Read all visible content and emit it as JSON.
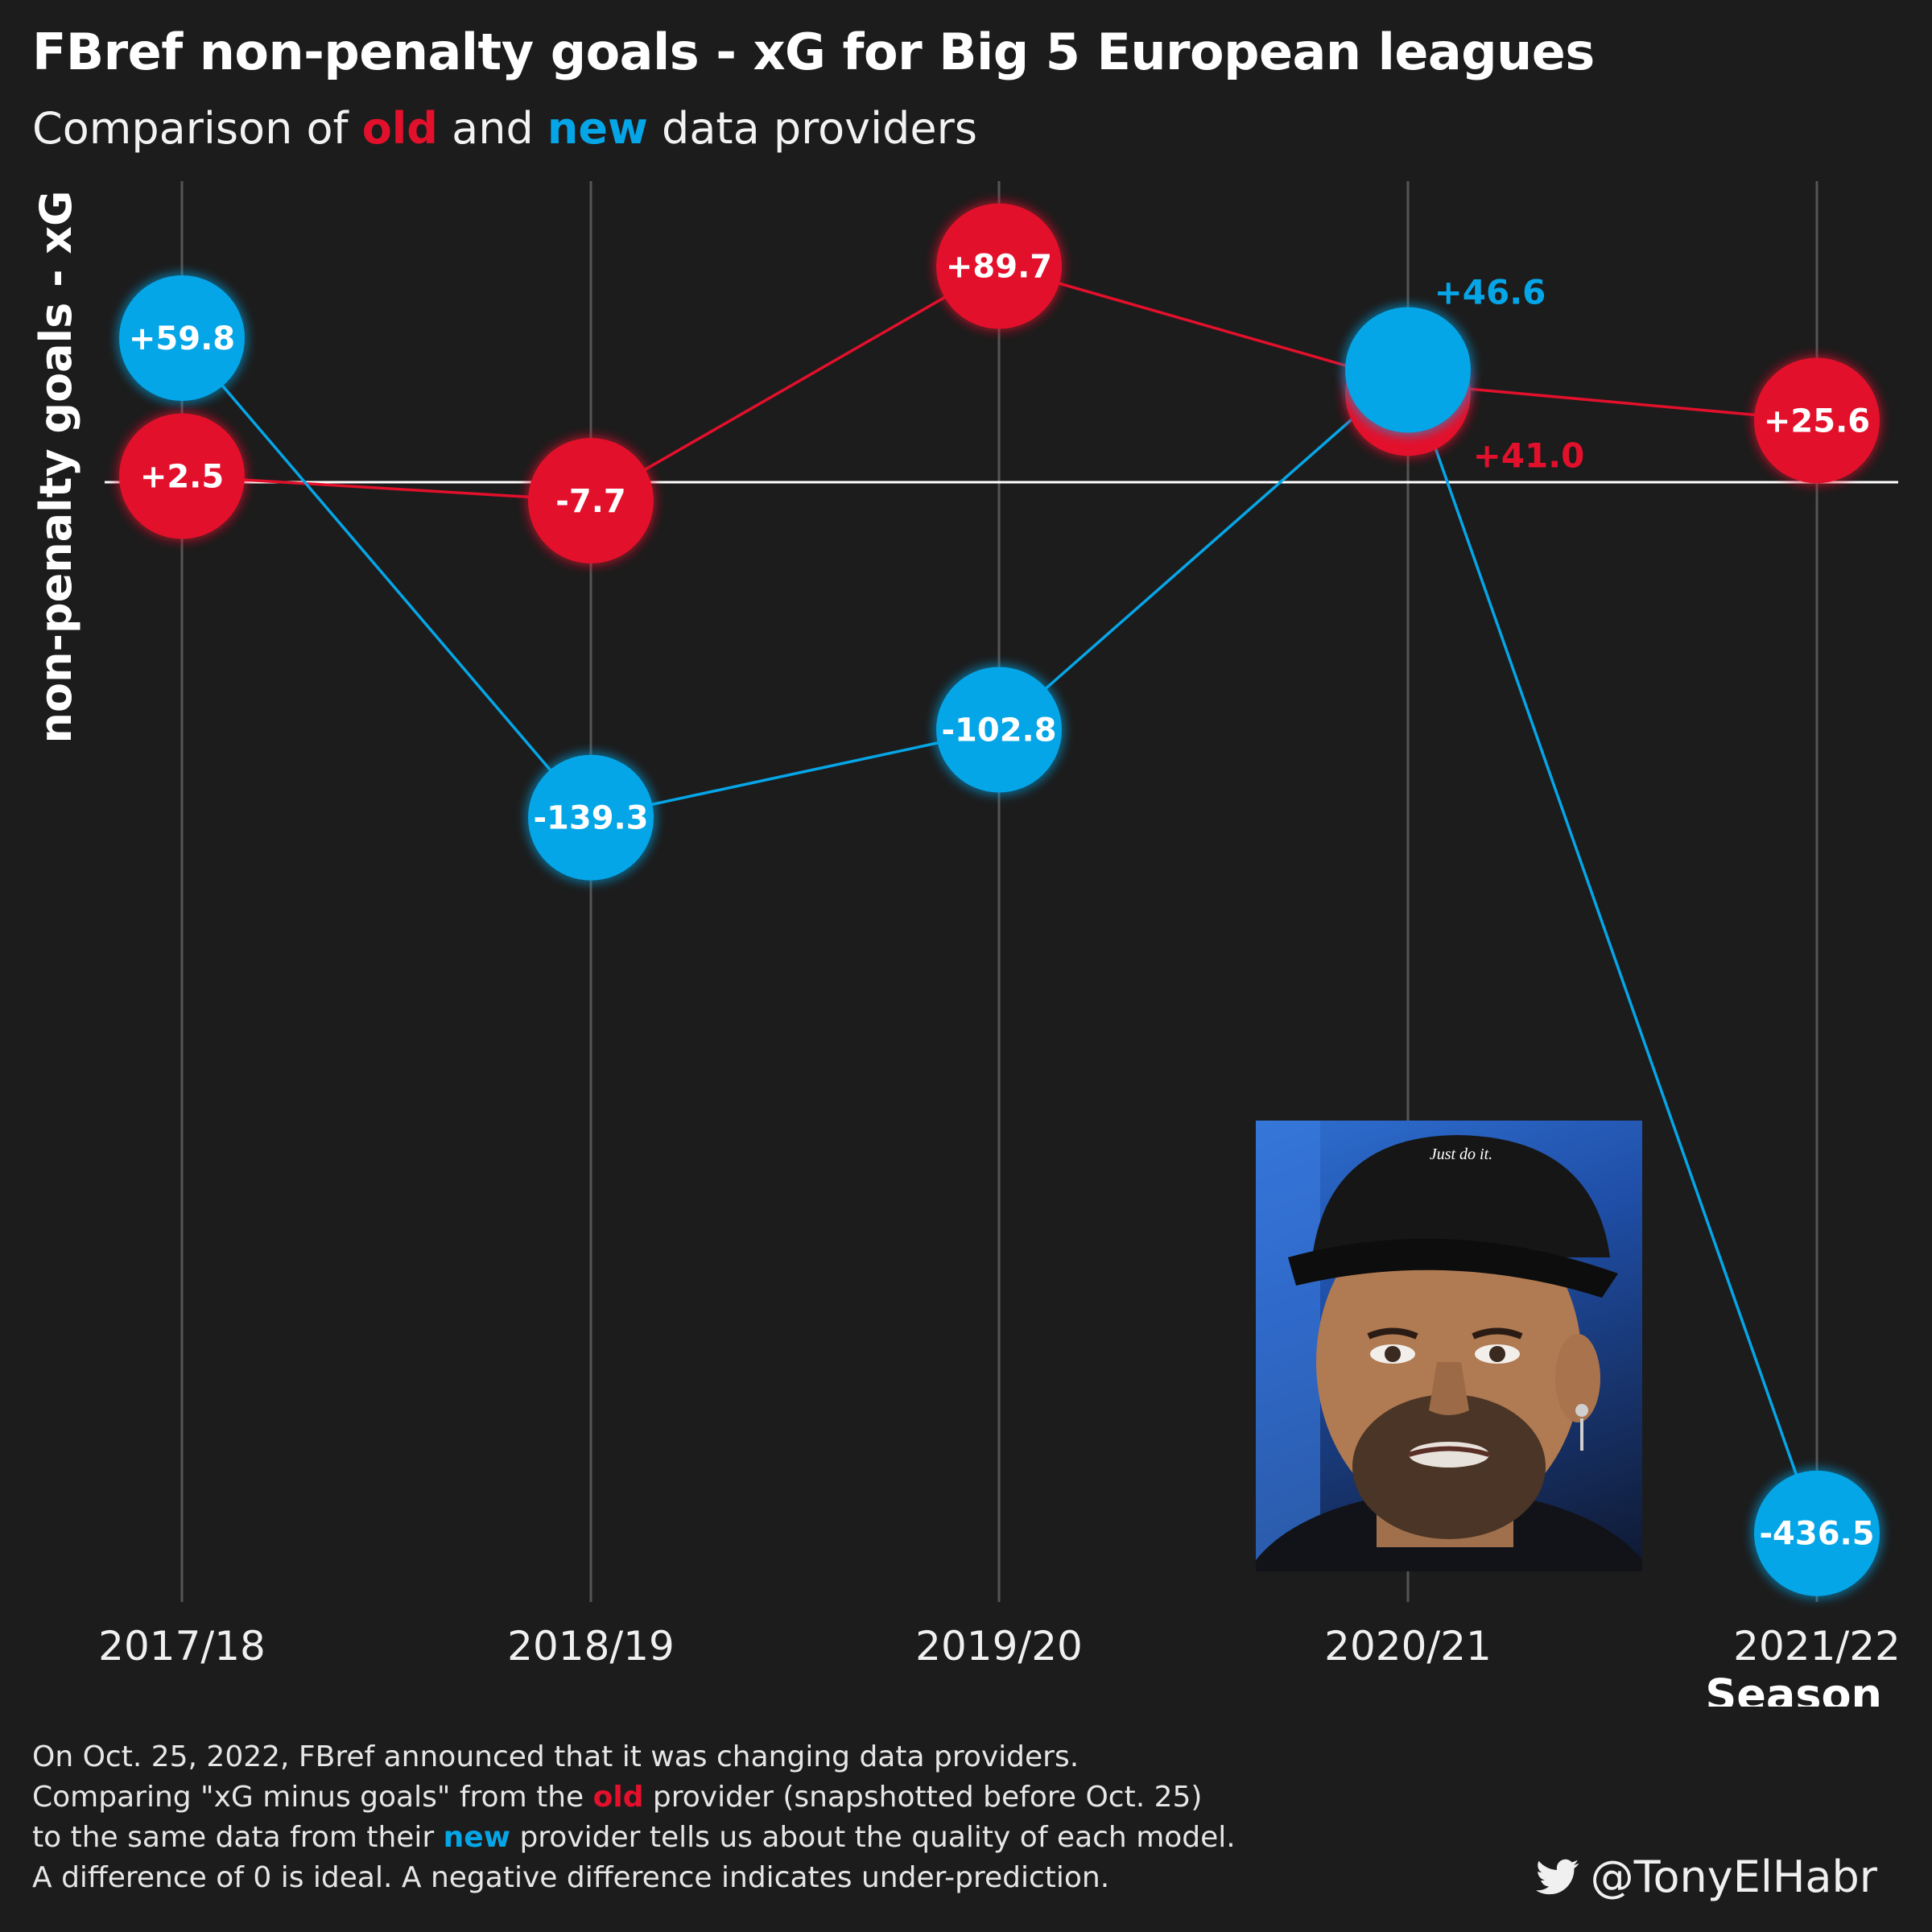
{
  "title": "FBref non-penalty goals - xG for Big 5 European leagues",
  "subtitle": {
    "prefix": "Comparison of",
    "old_word": "old",
    "middle": "and",
    "new_word": "new",
    "suffix": "data providers"
  },
  "colors": {
    "old": "#e3102c",
    "new": "#05a6e8",
    "background": "#1c1c1c"
  },
  "chart_data": {
    "type": "line",
    "xlabel": "Season",
    "ylabel": "non-penalty goals - xG",
    "categories": [
      "2017/18",
      "2018/19",
      "2019/20",
      "2020/21",
      "2021/22"
    ],
    "ylim": [
      -465,
      125
    ],
    "zero_line": true,
    "grid": "vertical",
    "series": [
      {
        "name": "old",
        "color": "#e3102c",
        "values": [
          2.5,
          -7.7,
          89.7,
          41.0,
          25.6
        ],
        "labels": [
          "+2.5",
          "-7.7",
          "+89.7",
          "+41.0",
          "+25.6"
        ]
      },
      {
        "name": "new",
        "color": "#05a6e8",
        "values": [
          59.8,
          -139.3,
          -102.8,
          46.6,
          -436.5
        ],
        "labels": [
          "+59.8",
          "-139.3",
          "-102.8",
          "+46.6",
          "-436.5"
        ]
      }
    ]
  },
  "meme": {
    "cap_text": "Just do it."
  },
  "caption": {
    "line1": "On Oct. 25, 2022, FBref announced that it was changing data providers.",
    "line2_a": "Comparing \"xG minus goals\" from the",
    "line2_old": "old",
    "line2_b": "provider (snapshotted before Oct. 25)",
    "line3_a": "to the same data from their",
    "line3_new": "new",
    "line3_b": "provider tells us about the quality of each model.",
    "line4": "A difference of 0 is ideal. A negative difference indicates under-prediction."
  },
  "credit": {
    "icon": "twitter-bird-icon",
    "handle": "@TonyElHabr"
  }
}
